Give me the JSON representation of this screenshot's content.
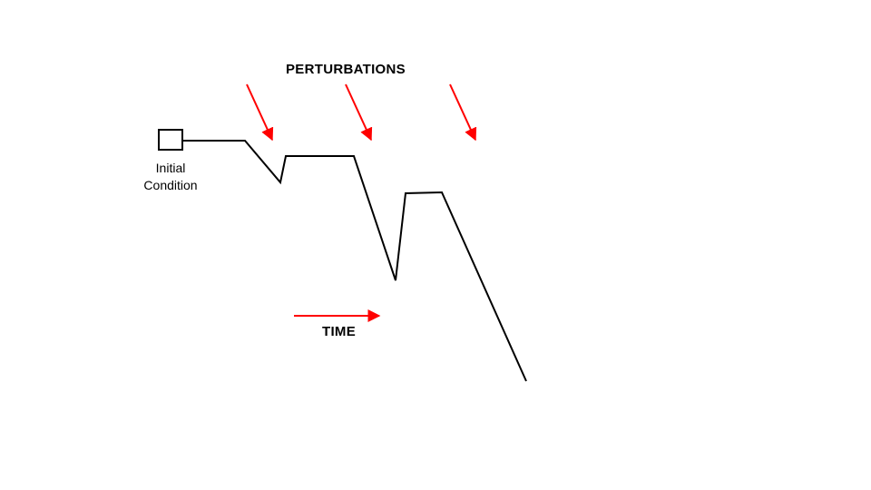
{
  "labels": {
    "perturbations": "PERTURBATIONS",
    "time": "TIME",
    "initial_condition_line1": "Initial",
    "initial_condition_line2": "Condition"
  },
  "colors": {
    "trajectory": "#000000",
    "arrows": "#ff0000"
  },
  "perturbation_count": 3
}
